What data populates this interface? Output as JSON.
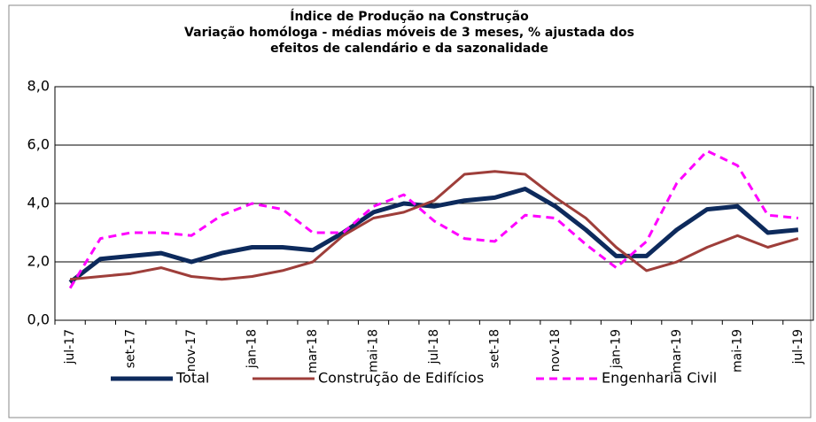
{
  "chart_data": {
    "type": "line",
    "title": "Índice de Produção na Construção",
    "subtitle": [
      "Variação homóloga - médias móveis de 3 meses, % ajustada dos",
      "efeitos de calendário e da sazonalidade"
    ],
    "categories": [
      "jul-17",
      null,
      "set-17",
      null,
      "nov-17",
      null,
      "jan-18",
      null,
      "mar-18",
      null,
      "mai-18",
      null,
      "jul-18",
      null,
      "set-18",
      null,
      "nov-18",
      null,
      "jan-19",
      null,
      "mar-19",
      null,
      "mai-19",
      null,
      "jul-19"
    ],
    "series": [
      {
        "name": "Total",
        "color": "#0d2a5c",
        "width": 5,
        "dashed": false,
        "values": [
          1.3,
          2.1,
          2.2,
          2.3,
          2.0,
          2.3,
          2.5,
          2.5,
          2.4,
          3.0,
          3.7,
          4.0,
          3.9,
          4.1,
          4.2,
          4.5,
          3.9,
          3.1,
          2.2,
          2.2,
          3.1,
          3.8,
          3.9,
          3.0,
          3.1
        ]
      },
      {
        "name": "Construção de Edifícios",
        "color": "#9e3e3a",
        "width": 3,
        "dashed": false,
        "values": [
          1.4,
          1.5,
          1.6,
          1.8,
          1.5,
          1.4,
          1.5,
          1.7,
          2.0,
          2.9,
          3.5,
          3.7,
          4.1,
          5.0,
          5.1,
          5.0,
          4.2,
          3.5,
          2.5,
          1.7,
          2.0,
          2.5,
          2.9,
          2.5,
          2.8
        ]
      },
      {
        "name": "Engenharia Civil",
        "color": "#ff00ff",
        "width": 3,
        "dashed": true,
        "values": [
          1.1,
          2.8,
          3.0,
          3.0,
          2.9,
          3.6,
          4.0,
          3.8,
          3.0,
          3.0,
          3.9,
          4.3,
          3.4,
          2.8,
          2.7,
          3.6,
          3.5,
          2.6,
          1.8,
          2.7,
          4.7,
          5.8,
          5.3,
          3.6,
          3.5
        ]
      }
    ],
    "ylim": [
      0,
      8
    ],
    "yticks": [
      {
        "value": 0,
        "label": "0,0"
      },
      {
        "value": 2,
        "label": "2,0"
      },
      {
        "value": 4,
        "label": "4,0"
      },
      {
        "value": 6,
        "label": "6,0"
      },
      {
        "value": 8,
        "label": "8,0"
      }
    ],
    "grid": true,
    "legend": "bottom"
  }
}
